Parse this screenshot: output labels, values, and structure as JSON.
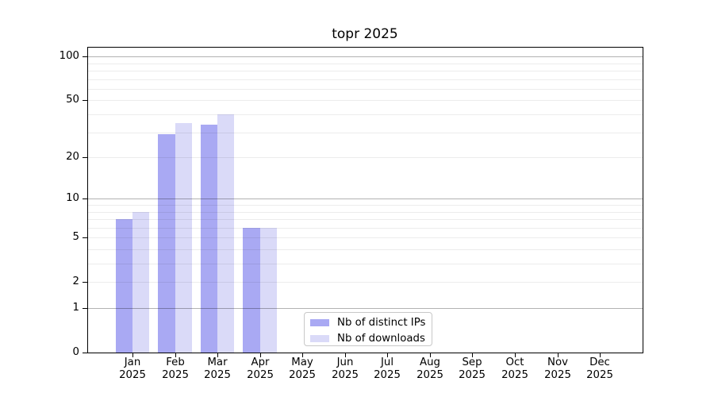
{
  "chart_data": {
    "type": "bar",
    "title": "topr 2025",
    "yscale": "log1p",
    "year": "2025",
    "categories": [
      "Jan",
      "Feb",
      "Mar",
      "Apr",
      "May",
      "Jun",
      "Jul",
      "Aug",
      "Sep",
      "Oct",
      "Nov",
      "Dec"
    ],
    "series": [
      {
        "name": "Nb of distinct IPs",
        "color": "#a9a9f3",
        "values": [
          7,
          29,
          34,
          6,
          0,
          0,
          0,
          0,
          0,
          0,
          0,
          0
        ]
      },
      {
        "name": "Nb of downloads",
        "color": "#dadaf8",
        "values": [
          8,
          35,
          40,
          6,
          0,
          0,
          0,
          0,
          0,
          0,
          0,
          0
        ]
      }
    ],
    "y_axis": {
      "tick_values": [
        0,
        1,
        2,
        5,
        10,
        20,
        50,
        100
      ],
      "tick_labels": [
        "0",
        "1",
        "2",
        "5",
        "10",
        "20",
        "50",
        "100"
      ],
      "major_grid_values": [
        1,
        10,
        100
      ],
      "minor_grid_values": [
        2,
        3,
        4,
        5,
        6,
        7,
        8,
        9,
        20,
        30,
        40,
        50,
        60,
        70,
        80,
        90
      ],
      "range": [
        0,
        116
      ]
    },
    "legend": {
      "position": "lower-center"
    },
    "grid": true
  },
  "colors": {
    "bar_distinct_ips": "#a9a9f3",
    "bar_downloads": "#dadaf8",
    "grid_major": "rgba(0,0,0,0.30)",
    "grid_minor": "rgba(0,0,0,0.075)",
    "spine": "#000000",
    "legend_border": "#c8c8c8",
    "background": "#ffffff"
  }
}
